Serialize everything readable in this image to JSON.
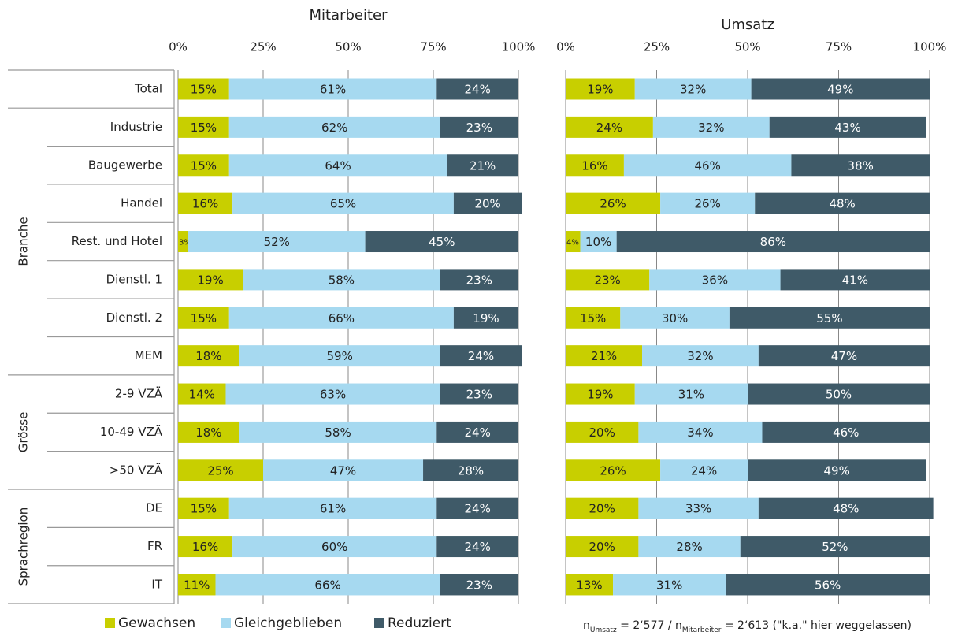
{
  "chart_data": [
    {
      "type": "bar",
      "orientation": "horizontal",
      "stacked": true,
      "title": "Mitarbeiter",
      "category_groups": [
        {
          "label": null,
          "categories": [
            "Total"
          ]
        },
        {
          "label": "Branche",
          "categories": [
            "Industrie",
            "Baugewerbe",
            "Handel",
            "Rest. und Hotel",
            "Dienstl. 1",
            "Dienstl. 2",
            "MEM"
          ]
        },
        {
          "label": "Grösse",
          "categories": [
            "2-9 VZÄ",
            "10-49 VZÄ",
            ">50 VZÄ"
          ]
        },
        {
          "label": "Sprachregion",
          "categories": [
            "DE",
            "FR",
            "IT"
          ]
        }
      ],
      "series": [
        {
          "name": "Gewachsen",
          "color": "#c8cf00",
          "values": [
            15,
            15,
            15,
            16,
            3,
            19,
            15,
            18,
            14,
            18,
            25,
            15,
            16,
            11
          ],
          "value_labels": [
            "15%",
            "15%",
            "15%",
            "16%",
            "3%",
            "19%",
            "15%",
            "18%",
            "14%",
            "18%",
            "25%",
            "15%",
            "16%",
            "11%"
          ]
        },
        {
          "name": "Gleichgeblieben",
          "color": "#a6d9f0",
          "values": [
            61,
            62,
            64,
            65,
            52,
            58,
            66,
            59,
            63,
            58,
            47,
            61,
            60,
            66
          ],
          "value_labels": [
            "61%",
            "62%",
            "64%",
            "65%",
            "52%",
            "58%",
            "66%",
            "59%",
            "63%",
            "58%",
            "47%",
            "61%",
            "60%",
            "66%"
          ]
        },
        {
          "name": "Reduziert",
          "color": "#3f5a68",
          "values": [
            24,
            23,
            21,
            20,
            45,
            23,
            19,
            24,
            23,
            24,
            28,
            24,
            24,
            23
          ],
          "value_labels": [
            "24%",
            "23%",
            "21%",
            "20%",
            "45%",
            "23%",
            "19%",
            "24%",
            "23%",
            "24%",
            "28%",
            "24%",
            "24%",
            "23%"
          ]
        }
      ],
      "xlim": [
        0,
        100
      ],
      "xticks": [
        {
          "value": 0,
          "label": "0%"
        },
        {
          "value": 25,
          "label": "25%"
        },
        {
          "value": 50,
          "label": "50%"
        },
        {
          "value": 75,
          "label": "75%"
        },
        {
          "value": 100,
          "label": "100%"
        }
      ],
      "grid": true
    },
    {
      "type": "bar",
      "orientation": "horizontal",
      "stacked": true,
      "title": "Umsatz",
      "series": [
        {
          "color": "#c8cf00",
          "values": [
            19,
            24,
            16,
            26,
            4,
            23,
            15,
            21,
            19,
            20,
            26,
            20,
            20,
            13
          ],
          "value_labels": [
            "19%",
            "24%",
            "16%",
            "26%",
            "4%",
            "23%",
            "15%",
            "21%",
            "19%",
            "20%",
            "26%",
            "20%",
            "20%",
            "13%"
          ]
        },
        {
          "color": "#a6d9f0",
          "values": [
            32,
            32,
            46,
            26,
            10,
            36,
            30,
            32,
            31,
            34,
            24,
            33,
            28,
            31
          ],
          "value_labels": [
            "32%",
            "32%",
            "46%",
            "26%",
            "10%",
            "36%",
            "30%",
            "32%",
            "31%",
            "34%",
            "24%",
            "33%",
            "28%",
            "31%"
          ]
        },
        {
          "color": "#3f5a68",
          "values": [
            49,
            43,
            38,
            48,
            86,
            41,
            55,
            47,
            50,
            46,
            49,
            48,
            52,
            56
          ],
          "value_labels": [
            "49%",
            "43%",
            "38%",
            "48%",
            "86%",
            "41%",
            "55%",
            "47%",
            "50%",
            "46%",
            "49%",
            "48%",
            "52%",
            "56%"
          ]
        }
      ],
      "xlim": [
        0,
        100
      ],
      "xticks": [
        {
          "value": 0,
          "label": "0%"
        },
        {
          "value": 25,
          "label": "25%"
        },
        {
          "value": 50,
          "label": "50%"
        },
        {
          "value": 75,
          "label": "75%"
        },
        {
          "value": 100,
          "label": "100%"
        }
      ],
      "grid": true
    }
  ],
  "footnote": [
    "n",
    {
      "sub": "Umsatz"
    },
    " = 2‘577 / n",
    {
      "sub": "Mitarbeiter"
    },
    " = 2‘613 (\"k.a.\" hier weggelassen)"
  ]
}
